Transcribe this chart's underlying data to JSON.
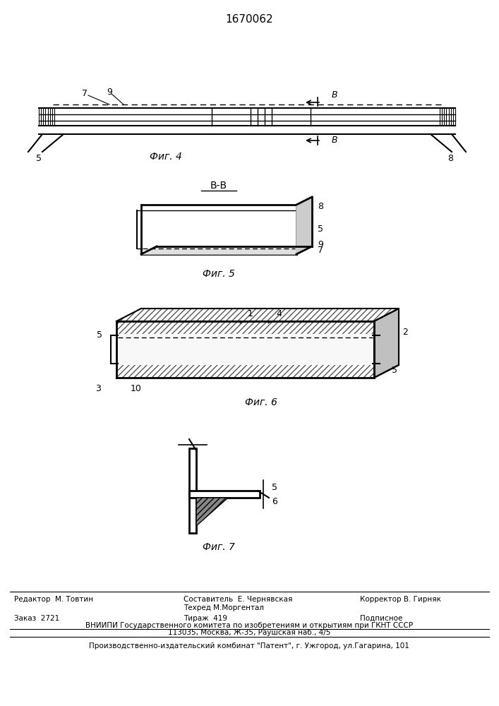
{
  "title": "1670062",
  "bg_color": "#ffffff",
  "line_color": "#000000",
  "footer": {
    "editor": "Редактор  М. Товтин",
    "composer": "Составитель  Е. Чернявская",
    "techred": "Техред М.Моргентал",
    "corrector": "Корректор В. Гирняк",
    "order": "Заказ  2721",
    "circulation": "Тираж  419",
    "subscription": "Подписное",
    "vniiipi_line1": "ВНИИПИ Государственного комитета по изобретениям и открытиям при ГКНТ СССР",
    "vniiipi_line2": "113035, Москва, Ж-35, Раушская наб., 4/5",
    "production": "Производственно-издательский комбинат \"Патент\", г. Ужгород, ул.Гагарина, 101"
  }
}
